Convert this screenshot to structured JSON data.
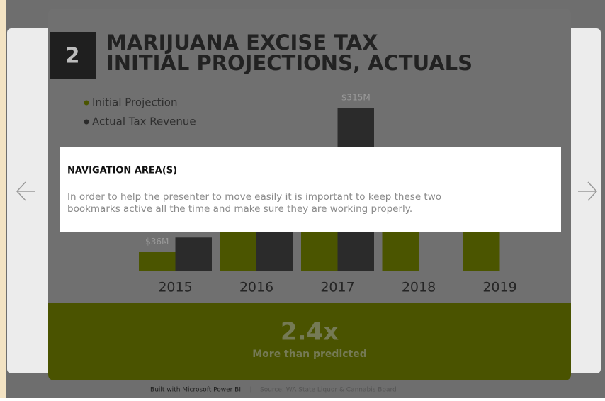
{
  "slide": {
    "number": "2",
    "title_lines": [
      "MARIJUANA EXCISE TAX",
      "INITIAL PROJECTIONS, ACTUALS"
    ]
  },
  "chart_data": {
    "type": "bar",
    "categories": [
      "2015",
      "2016",
      "2017",
      "2018",
      "2019"
    ],
    "series": [
      {
        "name": "Initial Projection",
        "color": "#4b5500",
        "values": [
          36,
          122,
          150,
          170,
          180
        ],
        "value_labels": [
          "$36M",
          null,
          null,
          null,
          null
        ]
      },
      {
        "name": "Actual Tax Revenue",
        "color": "#2b2b2b",
        "values": [
          64,
          186,
          315,
          null,
          null
        ],
        "value_labels": [
          null,
          null,
          "$315M",
          null,
          null
        ]
      }
    ]
  },
  "overlay": {
    "heading": "NAVIGATION AREA(S)",
    "body_lines": [
      "In order to help the presenter to move easily it is important to keep these two",
      "bookmarks active all the time and make sure they are working properly."
    ]
  },
  "kpi": {
    "value": "2.4x",
    "caption": "More than predicted"
  },
  "footer": {
    "built_with": "Built with Microsoft Power BI",
    "separator": "|",
    "source": "Source: WA State Liquor & Cannabis Board"
  }
}
